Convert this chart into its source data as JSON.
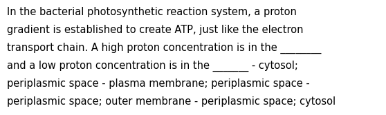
{
  "background_color": "#ffffff",
  "text_color": "#000000",
  "lines": [
    "In the bacterial photosynthetic reaction system, a proton",
    "gradient is established to create ATP, just like the electron",
    "transport chain. A high proton concentration is in the ________",
    "and a low proton concentration is in the _______ - cytosol;",
    "periplasmic space - plasma membrane; periplasmic space -",
    "periplasmic space; outer membrane - periplasmic space; cytosol"
  ],
  "font_size": 10.5,
  "font_family": "DejaVu Sans",
  "figsize": [
    5.58,
    1.67
  ],
  "dpi": 100
}
